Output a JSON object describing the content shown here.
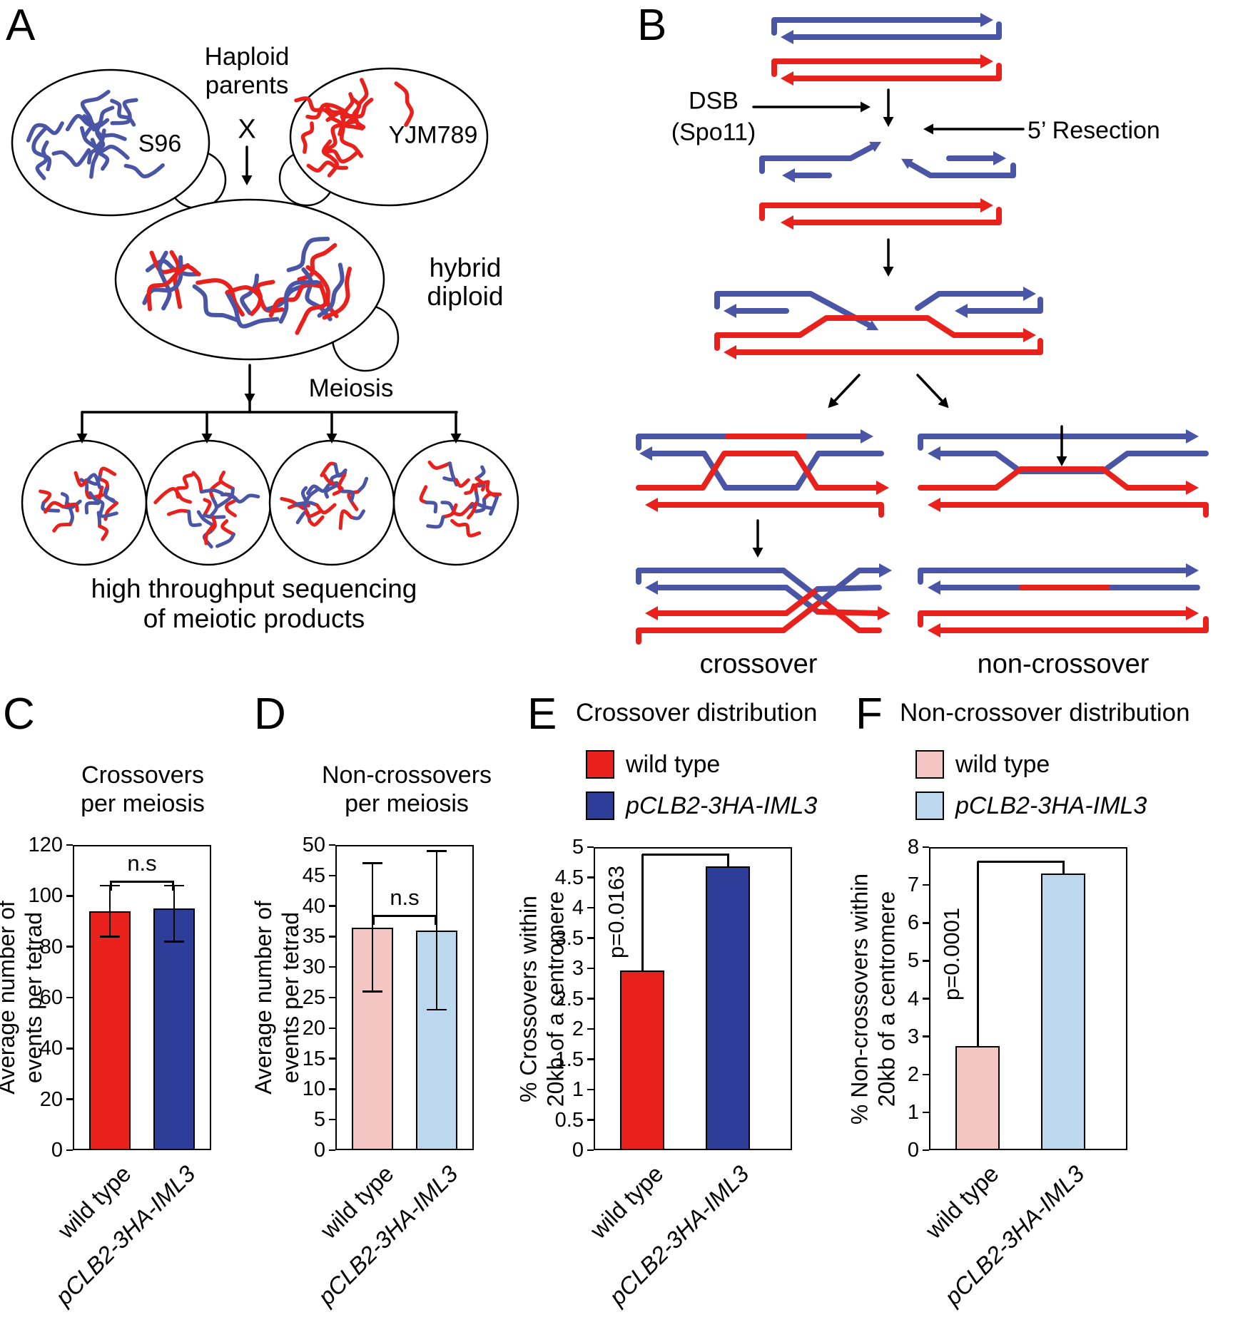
{
  "colors": {
    "red": "#e8211d",
    "dark_blue": "#2e3d97",
    "strand_blue": "#4a55a5",
    "pink": "#f4c6c3",
    "light_blue": "#bdd7ee"
  },
  "panels": {
    "a": {
      "label": "A",
      "left_cell": "S96",
      "right_cell": "YJM789",
      "haploid_line1": "Haploid",
      "haploid_line2": "parents",
      "cross": "X",
      "hybrid_line1": "hybrid",
      "hybrid_line2": "diploid",
      "meiosis": "Meiosis",
      "seq_line1": "high throughput sequencing",
      "seq_line2": "of meiotic products"
    },
    "b": {
      "label": "B",
      "dsb_line1": "DSB",
      "dsb_line2": "(Spo11)",
      "resection": "5’ Resection",
      "crossover": "crossover",
      "non_crossover": "non-crossover"
    }
  },
  "chart_data": [
    {
      "id": "c",
      "panel_label": "C",
      "type": "bar",
      "title_lines": [
        "Crossovers",
        "per meiosis"
      ],
      "ylabel_lines": [
        "Average number of",
        "events per tetrad"
      ],
      "ylim": [
        0,
        120
      ],
      "ytick_step": 20,
      "categories": [
        "wild type",
        "pCLB2-3HA-IML3"
      ],
      "categories_italic": [
        false,
        true
      ],
      "values": [
        94,
        95
      ],
      "error_low": [
        10,
        13
      ],
      "error_high": [
        10,
        9
      ],
      "bar_colors": [
        "#e8211d",
        "#2e3d97"
      ],
      "significance": {
        "style": "bracket",
        "label": "n.s",
        "y": 106
      }
    },
    {
      "id": "d",
      "panel_label": "D",
      "type": "bar",
      "title_lines": [
        "Non-crossovers",
        "per meiosis"
      ],
      "ylabel_lines": [
        "Average number of",
        "events per tetrad"
      ],
      "ylim": [
        0,
        50
      ],
      "ytick_step": 5,
      "categories": [
        "wild type",
        "pCLB2-3HA-IML3"
      ],
      "categories_italic": [
        false,
        true
      ],
      "values": [
        36.5,
        36
      ],
      "error_low": [
        10.5,
        13
      ],
      "error_high": [
        10.5,
        13
      ],
      "bar_colors": [
        "#f4c6c3",
        "#bdd7ee"
      ],
      "significance": {
        "style": "bracket",
        "label": "n.s",
        "y": 38.5
      }
    },
    {
      "id": "e",
      "panel_label": "E",
      "type": "bar",
      "panel_title": "Crossover distribution",
      "legend": [
        {
          "label": "wild type",
          "color": "#e8211d",
          "italic": false
        },
        {
          "label": "pCLB2-3HA-IML3",
          "color": "#2e3d97",
          "italic": true
        }
      ],
      "ylabel_lines": [
        "% Crossovers within",
        "20kb of a centromere"
      ],
      "ylim": [
        0,
        5
      ],
      "ytick_step": 0.5,
      "categories": [
        "wild type",
        "pCLB2-3HA-IML3"
      ],
      "categories_italic": [
        false,
        true
      ],
      "values": [
        2.97,
        4.68
      ],
      "bar_colors": [
        "#e8211d",
        "#2e3d97"
      ],
      "significance": {
        "style": "step",
        "label": "p=0.0163",
        "top": 4.88
      }
    },
    {
      "id": "f",
      "panel_label": "F",
      "type": "bar",
      "panel_title": "Non-crossover distribution",
      "legend": [
        {
          "label": "wild type",
          "color": "#f4c6c3",
          "italic": false
        },
        {
          "label": "pCLB2-3HA-IML3",
          "color": "#bdd7ee",
          "italic": true
        }
      ],
      "ylabel_lines": [
        "% Non-crossovers within",
        "20kb of a centromere"
      ],
      "ylim": [
        0,
        8
      ],
      "ytick_step": 1,
      "categories": [
        "wild type",
        "pCLB2-3HA-IML3"
      ],
      "categories_italic": [
        false,
        true
      ],
      "values": [
        2.75,
        7.3
      ],
      "bar_colors": [
        "#f4c6c3",
        "#bdd7ee"
      ],
      "significance": {
        "style": "step",
        "label": "p=0.0001",
        "top": 7.62
      }
    }
  ]
}
